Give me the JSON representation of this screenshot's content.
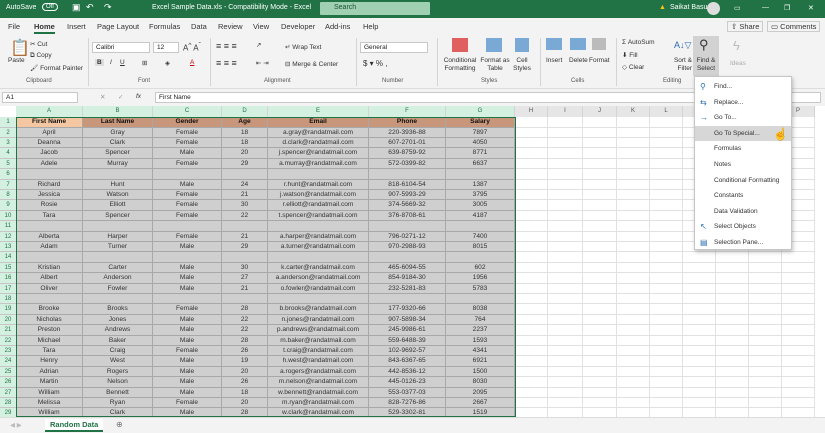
{
  "titlebar": {
    "autosave": "AutoSave",
    "autosave_state": "Off",
    "title": "Excel Sample Data.xls  -  Compatibility Mode  -  Excel",
    "search": "Search",
    "user": "Saikat Basu"
  },
  "tabs": [
    "File",
    "Home",
    "Insert",
    "Page Layout",
    "Formulas",
    "Data",
    "Review",
    "View",
    "Developer",
    "Add-ins",
    "Help"
  ],
  "share": "Share",
  "comments": "Comments",
  "ribbon": {
    "paste": "Paste",
    "cut": "Cut",
    "copy": "Copy",
    "format_painter": "Format Painter",
    "clipboard": "Clipboard",
    "font_name": "Calibri",
    "font_size": "12",
    "font": "Font",
    "wrap_text": "Wrap Text",
    "merge_center": "Merge & Center",
    "alignment": "Alignment",
    "number_format": "General",
    "number": "Number",
    "conditional_formatting": "Conditional Formatting",
    "format_as_table": "Format as Table",
    "cell_styles": "Cell Styles",
    "styles": "Styles",
    "insert": "Insert",
    "delete": "Delete",
    "format": "Format",
    "cells": "Cells",
    "autosum": "AutoSum",
    "fill": "Fill",
    "clear": "Clear",
    "sort_filter": "Sort & Filter",
    "find_select": "Find & Select",
    "editing": "Editing",
    "ideas": "Ideas"
  },
  "formula_bar": {
    "name_box": "A1",
    "fx": "fx",
    "content": "First Name"
  },
  "columns": [
    "A",
    "B",
    "C",
    "D",
    "E",
    "F",
    "G",
    "H",
    "I",
    "J",
    "K",
    "L",
    "M",
    "N",
    "O",
    "P"
  ],
  "table": {
    "headers": [
      "First Name",
      "Last Name",
      "Gender",
      "Age",
      "Email",
      "Phone",
      "Salary"
    ],
    "rows": [
      [
        "April",
        "Gray",
        "Female",
        "18",
        "a.gray@randatmail.com",
        "220-3936-88",
        "7897"
      ],
      [
        "Deanna",
        "Clark",
        "Female",
        "18",
        "d.clark@randatmail.com",
        "607-2701-01",
        "4050"
      ],
      [
        "Jacob",
        "Spencer",
        "Male",
        "20",
        "j.spencer@randatmail.com",
        "639-8759-92",
        "8771"
      ],
      [
        "Adele",
        "Murray",
        "Female",
        "29",
        "a.murray@randatmail.com",
        "572-0399-82",
        "6637"
      ],
      [
        "",
        "",
        "",
        "",
        "",
        "",
        ""
      ],
      [
        "Richard",
        "Hunt",
        "Male",
        "24",
        "r.hunt@randatmail.com",
        "818-6104-54",
        "1387"
      ],
      [
        "Jessica",
        "Watson",
        "Female",
        "21",
        "j.watson@randatmail.com",
        "907-5993-29",
        "3795"
      ],
      [
        "Rosie",
        "Elliott",
        "Female",
        "30",
        "r.elliott@randatmail.com",
        "374-5669-32",
        "3005"
      ],
      [
        "Tara",
        "Spencer",
        "Female",
        "22",
        "t.spencer@randatmail.com",
        "376-8708-61",
        "4187"
      ],
      [
        "",
        "",
        "",
        "",
        "",
        "",
        ""
      ],
      [
        "Alberta",
        "Harper",
        "Female",
        "21",
        "a.harper@randatmail.com",
        "796-0271-12",
        "7400"
      ],
      [
        "Adam",
        "Turner",
        "Male",
        "29",
        "a.turner@randatmail.com",
        "970-2988-93",
        "8015"
      ],
      [
        "",
        "",
        "",
        "",
        "",
        "",
        ""
      ],
      [
        "Kristian",
        "Carter",
        "Male",
        "30",
        "k.carter@randatmail.com",
        "465-6094-55",
        "602"
      ],
      [
        "Albert",
        "Anderson",
        "Male",
        "27",
        "a.anderson@randatmail.com",
        "854-9184-30",
        "1956"
      ],
      [
        "Oliver",
        "Fowler",
        "Male",
        "21",
        "o.fowler@randatmail.com",
        "232-5281-83",
        "5783"
      ],
      [
        "",
        "",
        "",
        "",
        "",
        "",
        ""
      ],
      [
        "Brooke",
        "Brooks",
        "Female",
        "28",
        "b.brooks@randatmail.com",
        "177-9320-66",
        "8038"
      ],
      [
        "Nicholas",
        "Jones",
        "Male",
        "22",
        "n.jones@randatmail.com",
        "907-5898-34",
        "764"
      ],
      [
        "Preston",
        "Andrews",
        "Male",
        "22",
        "p.andrews@randatmail.com",
        "245-9986-61",
        "2237"
      ],
      [
        "Michael",
        "Baker",
        "Male",
        "28",
        "m.baker@randatmail.com",
        "559-6488-39",
        "1593"
      ],
      [
        "Tara",
        "Craig",
        "Female",
        "26",
        "t.craig@randatmail.com",
        "102-9692-57",
        "4341"
      ],
      [
        "Henry",
        "West",
        "Male",
        "19",
        "h.west@randatmail.com",
        "843-6367-65",
        "6921"
      ],
      [
        "Adrian",
        "Rogers",
        "Male",
        "20",
        "a.rogers@randatmail.com",
        "442-8536-12",
        "1500"
      ],
      [
        "Martin",
        "Nelson",
        "Male",
        "26",
        "m.nelson@randatmail.com",
        "445-0126-23",
        "8030"
      ],
      [
        "William",
        "Bennett",
        "Male",
        "18",
        "w.bennett@randatmail.com",
        "553-0377-03",
        "2095"
      ],
      [
        "Melissa",
        "Ryan",
        "Female",
        "20",
        "m.ryan@randatmail.com",
        "828-7276-86",
        "2667"
      ],
      [
        "William",
        "Clark",
        "Male",
        "28",
        "w.clark@randatmail.com",
        "529-3302-81",
        "1519"
      ]
    ]
  },
  "menu": [
    {
      "label": "Find...",
      "icon": "search-icon"
    },
    {
      "label": "Replace...",
      "icon": "replace-icon"
    },
    {
      "label": "Go To...",
      "icon": "arrow-right-icon"
    },
    {
      "label": "Go To Special...",
      "icon": "",
      "highlighted": true
    },
    {
      "label": "Formulas",
      "icon": ""
    },
    {
      "label": "Notes",
      "icon": ""
    },
    {
      "label": "Conditional Formatting",
      "icon": ""
    },
    {
      "label": "Constants",
      "icon": ""
    },
    {
      "label": "Data Validation",
      "icon": ""
    },
    {
      "label": "Select Objects",
      "icon": "pointer-icon"
    },
    {
      "label": "Selection Pane...",
      "icon": "selection-pane-icon"
    }
  ],
  "sheet_tab": "Random Data",
  "colors": {
    "brand": "#217346",
    "header_fill": "#c8967a",
    "selection_fill": "#cfcfcf"
  }
}
